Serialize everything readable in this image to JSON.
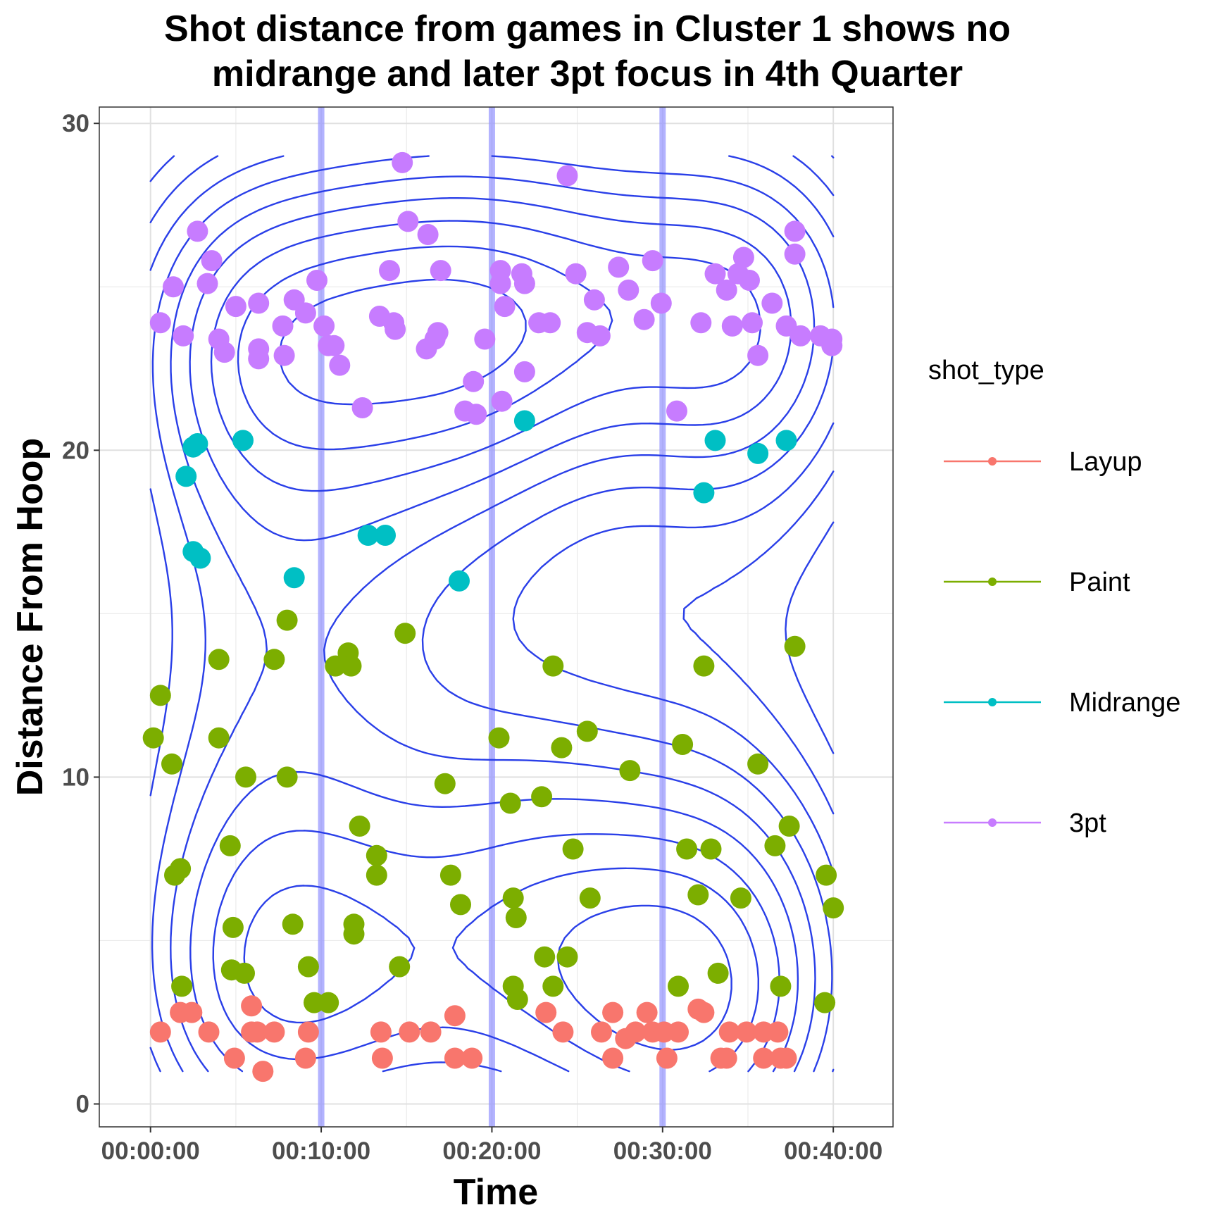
{
  "chart_data": {
    "type": "scatter",
    "title": "Shot distance from games in Cluster 1 shows no\nmidrange and later 3pt focus in 4th Quarter",
    "xlabel": "Time",
    "ylabel": "Distance From Hoop",
    "x_unit": "seconds",
    "xlim": [
      -180,
      2610
    ],
    "ylim": [
      -0.7,
      30.5
    ],
    "x_ticks": [
      0,
      600,
      1200,
      1800,
      2400
    ],
    "x_tick_labels": [
      "00:00:00",
      "00:10:00",
      "00:20:00",
      "00:30:00",
      "00:40:00"
    ],
    "y_ticks": [
      0,
      10,
      20,
      30
    ],
    "y_tick_labels": [
      "0",
      "10",
      "20",
      "30"
    ],
    "grid": true,
    "quarter_lines_x": [
      600,
      1200,
      1800
    ],
    "quarter_line_color": "#9999ff",
    "contour_color": "#2a3fe8",
    "legend": {
      "title": "shot_type",
      "position": "right"
    },
    "series": [
      {
        "name": "Layup",
        "color": "#f8766d",
        "points": [
          [
            35,
            2.2
          ],
          [
            105,
            2.8
          ],
          [
            145,
            2.8
          ],
          [
            205,
            2.2
          ],
          [
            295,
            1.4
          ],
          [
            355,
            3.0
          ],
          [
            355,
            2.2
          ],
          [
            375,
            2.2
          ],
          [
            395,
            1.0
          ],
          [
            435,
            2.2
          ],
          [
            545,
            1.4
          ],
          [
            555,
            2.2
          ],
          [
            810,
            2.2
          ],
          [
            815,
            1.4
          ],
          [
            910,
            2.2
          ],
          [
            985,
            2.2
          ],
          [
            1070,
            2.7
          ],
          [
            1070,
            1.4
          ],
          [
            1130,
            1.4
          ],
          [
            1390,
            2.8
          ],
          [
            1450,
            2.2
          ],
          [
            1585,
            2.2
          ],
          [
            1625,
            1.4
          ],
          [
            1625,
            2.8
          ],
          [
            1670,
            2.0
          ],
          [
            1705,
            2.2
          ],
          [
            1745,
            2.8
          ],
          [
            1765,
            2.2
          ],
          [
            1805,
            2.2
          ],
          [
            1815,
            1.4
          ],
          [
            1855,
            2.2
          ],
          [
            1925,
            2.9
          ],
          [
            1945,
            2.8
          ],
          [
            2005,
            1.4
          ],
          [
            2025,
            1.4
          ],
          [
            2035,
            2.2
          ],
          [
            2095,
            2.2
          ],
          [
            2155,
            1.4
          ],
          [
            2155,
            2.2
          ],
          [
            2205,
            2.2
          ],
          [
            2215,
            1.4
          ],
          [
            2235,
            1.4
          ]
        ]
      },
      {
        "name": "Paint",
        "color": "#7cae00",
        "points": [
          [
            10,
            11.2
          ],
          [
            35,
            12.5
          ],
          [
            75,
            10.4
          ],
          [
            85,
            7.0
          ],
          [
            105,
            7.2
          ],
          [
            110,
            3.6
          ],
          [
            280,
            7.9
          ],
          [
            290,
            5.4
          ],
          [
            285,
            4.1
          ],
          [
            330,
            4.0
          ],
          [
            335,
            10.0
          ],
          [
            240,
            11.2
          ],
          [
            240,
            13.6
          ],
          [
            480,
            10.0
          ],
          [
            480,
            14.8
          ],
          [
            435,
            13.6
          ],
          [
            500,
            5.5
          ],
          [
            555,
            4.2
          ],
          [
            575,
            3.1
          ],
          [
            625,
            3.1
          ],
          [
            650,
            13.4
          ],
          [
            695,
            13.8
          ],
          [
            705,
            13.4
          ],
          [
            715,
            5.2
          ],
          [
            715,
            5.5
          ],
          [
            735,
            8.5
          ],
          [
            795,
            7.6
          ],
          [
            795,
            7.0
          ],
          [
            875,
            4.2
          ],
          [
            895,
            14.4
          ],
          [
            1035,
            9.8
          ],
          [
            1055,
            7.0
          ],
          [
            1090,
            6.1
          ],
          [
            1225,
            11.2
          ],
          [
            1265,
            9.2
          ],
          [
            1275,
            3.6
          ],
          [
            1275,
            6.3
          ],
          [
            1285,
            5.7
          ],
          [
            1290,
            3.2
          ],
          [
            1375,
            9.4
          ],
          [
            1385,
            4.5
          ],
          [
            1415,
            3.6
          ],
          [
            1415,
            13.4
          ],
          [
            1445,
            10.9
          ],
          [
            1465,
            4.5
          ],
          [
            1485,
            7.8
          ],
          [
            1535,
            11.4
          ],
          [
            1545,
            6.3
          ],
          [
            1685,
            10.2
          ],
          [
            1855,
            3.6
          ],
          [
            1870,
            11.0
          ],
          [
            1885,
            7.8
          ],
          [
            1925,
            6.4
          ],
          [
            1945,
            13.4
          ],
          [
            1970,
            7.8
          ],
          [
            1995,
            4.0
          ],
          [
            2075,
            6.3
          ],
          [
            2135,
            10.4
          ],
          [
            2195,
            7.9
          ],
          [
            2215,
            3.6
          ],
          [
            2245,
            8.5
          ],
          [
            2265,
            14.0
          ],
          [
            2370,
            3.1
          ],
          [
            2375,
            7.0
          ],
          [
            2400,
            6.0
          ]
        ]
      },
      {
        "name": "Midrange",
        "color": "#00bfc4",
        "points": [
          [
            125,
            19.2
          ],
          [
            150,
            20.1
          ],
          [
            150,
            16.9
          ],
          [
            175,
            16.7
          ],
          [
            165,
            20.2
          ],
          [
            325,
            20.3
          ],
          [
            505,
            16.1
          ],
          [
            765,
            17.4
          ],
          [
            825,
            17.4
          ],
          [
            1085,
            16.0
          ],
          [
            1315,
            20.9
          ],
          [
            1945,
            18.7
          ],
          [
            1985,
            20.3
          ],
          [
            2135,
            19.9
          ],
          [
            2235,
            20.3
          ]
        ]
      },
      {
        "name": "3pt",
        "color": "#c77cff",
        "points": [
          [
            35,
            23.9
          ],
          [
            80,
            25.0
          ],
          [
            115,
            23.5
          ],
          [
            165,
            26.7
          ],
          [
            200,
            25.1
          ],
          [
            215,
            25.8
          ],
          [
            240,
            23.4
          ],
          [
            260,
            23.0
          ],
          [
            300,
            24.4
          ],
          [
            380,
            24.5
          ],
          [
            380,
            23.1
          ],
          [
            380,
            22.8
          ],
          [
            465,
            23.8
          ],
          [
            470,
            22.9
          ],
          [
            505,
            24.6
          ],
          [
            545,
            24.2
          ],
          [
            585,
            25.2
          ],
          [
            610,
            23.8
          ],
          [
            625,
            23.2
          ],
          [
            645,
            23.2
          ],
          [
            665,
            22.6
          ],
          [
            745,
            21.3
          ],
          [
            805,
            24.1
          ],
          [
            840,
            25.5
          ],
          [
            855,
            23.9
          ],
          [
            860,
            23.7
          ],
          [
            885,
            28.8
          ],
          [
            905,
            27.0
          ],
          [
            975,
            26.6
          ],
          [
            970,
            23.1
          ],
          [
            1000,
            23.4
          ],
          [
            1010,
            23.6
          ],
          [
            1020,
            25.5
          ],
          [
            1135,
            22.1
          ],
          [
            1105,
            21.2
          ],
          [
            1145,
            21.1
          ],
          [
            1175,
            23.4
          ],
          [
            1230,
            25.5
          ],
          [
            1230,
            25.1
          ],
          [
            1245,
            24.4
          ],
          [
            1235,
            21.5
          ],
          [
            1305,
            25.4
          ],
          [
            1315,
            25.1
          ],
          [
            1315,
            22.4
          ],
          [
            1365,
            23.9
          ],
          [
            1405,
            23.9
          ],
          [
            1495,
            25.4
          ],
          [
            1535,
            23.6
          ],
          [
            1560,
            24.6
          ],
          [
            1580,
            23.5
          ],
          [
            1645,
            25.6
          ],
          [
            1680,
            24.9
          ],
          [
            1735,
            24.0
          ],
          [
            1765,
            25.8
          ],
          [
            1795,
            24.5
          ],
          [
            1850,
            21.2
          ],
          [
            1935,
            23.9
          ],
          [
            1985,
            25.4
          ],
          [
            2025,
            24.9
          ],
          [
            2045,
            23.8
          ],
          [
            2065,
            25.4
          ],
          [
            2085,
            25.9
          ],
          [
            2105,
            25.2
          ],
          [
            2115,
            23.9
          ],
          [
            2135,
            22.9
          ],
          [
            2185,
            24.5
          ],
          [
            2235,
            23.8
          ],
          [
            2265,
            26.7
          ],
          [
            2265,
            26.0
          ],
          [
            2285,
            23.5
          ],
          [
            2355,
            23.5
          ],
          [
            2395,
            23.4
          ],
          [
            2395,
            23.2
          ],
          [
            1465,
            28.4
          ]
        ]
      }
    ]
  }
}
